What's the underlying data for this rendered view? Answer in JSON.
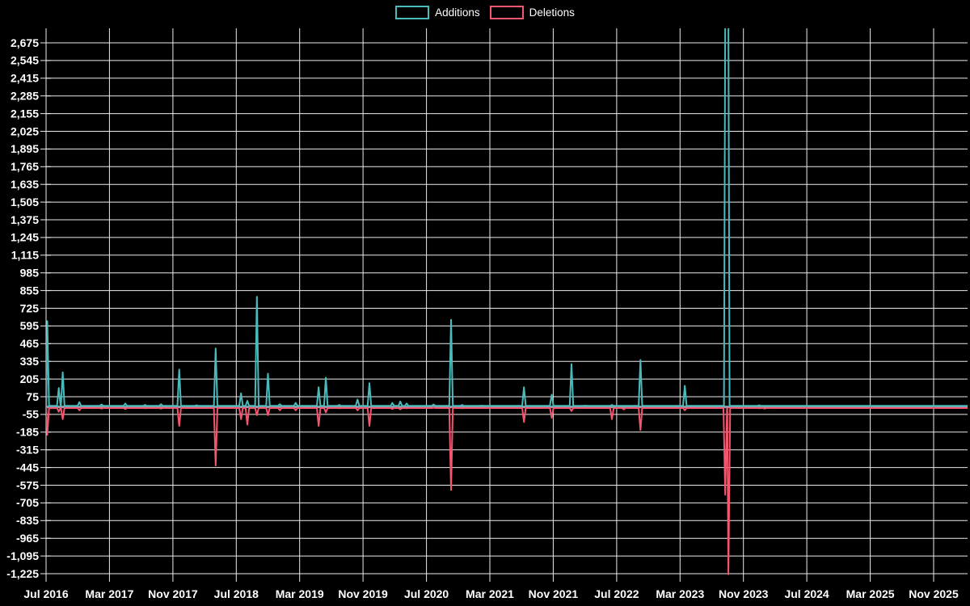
{
  "legend": {
    "additions_label": "Additions",
    "deletions_label": "Deletions"
  },
  "colors": {
    "additions": "#4abbbc",
    "deletions": "#f5566f",
    "zero_line": "#90a0ae",
    "grid": "#ececec",
    "text": "#ffffff",
    "background": "#000000"
  },
  "chart_data": {
    "type": "line",
    "title": "",
    "grid": true,
    "legend_position": "top-center",
    "x_axis": {
      "tick_labels": [
        "Jul 2016",
        "Mar 2017",
        "Nov 2017",
        "Jul 2018",
        "Mar 2019",
        "Nov 2019",
        "Jul 2020",
        "Mar 2021",
        "Nov 2021",
        "Jul 2022",
        "Mar 2023",
        "Nov 2023",
        "Jul 2024",
        "Mar 2025",
        "Nov 2025"
      ],
      "months_between_ticks": 8,
      "start": "Jul 2016",
      "end": "Nov 2025"
    },
    "y_axis": {
      "tick_step": 130,
      "ticks": [
        2675,
        2545,
        2415,
        2285,
        2155,
        2025,
        1895,
        1765,
        1635,
        1505,
        1375,
        1245,
        1115,
        985,
        855,
        725,
        595,
        465,
        335,
        205,
        75,
        -55,
        -185,
        -315,
        -445,
        -575,
        -705,
        -835,
        -965,
        -1095,
        -1225
      ],
      "zero_line": true
    },
    "series": [
      {
        "name": "Additions",
        "color_key": "additions",
        "baseline_value": 8,
        "points": [
          {
            "months_from_jul2016": 0.15,
            "date": "2016-07",
            "value": 630
          },
          {
            "months_from_jul2016": 1.6,
            "date": "2016-08",
            "value": 140
          },
          {
            "months_from_jul2016": 2.1,
            "date": "2016-09",
            "value": 255
          },
          {
            "months_from_jul2016": 4.2,
            "date": "2016-11",
            "value": 35
          },
          {
            "months_from_jul2016": 7.0,
            "date": "2017-02",
            "value": 18
          },
          {
            "months_from_jul2016": 10.0,
            "date": "2017-05",
            "value": 25
          },
          {
            "months_from_jul2016": 12.5,
            "date": "2017-07",
            "value": 15
          },
          {
            "months_from_jul2016": 14.5,
            "date": "2017-09",
            "value": 20
          },
          {
            "months_from_jul2016": 16.8,
            "date": "2017-12",
            "value": 275
          },
          {
            "months_from_jul2016": 19.0,
            "date": "2018-02",
            "value": 12
          },
          {
            "months_from_jul2016": 21.4,
            "date": "2018-04",
            "value": 430
          },
          {
            "months_from_jul2016": 24.6,
            "date": "2018-07",
            "value": 100
          },
          {
            "months_from_jul2016": 25.4,
            "date": "2018-08",
            "value": 45
          },
          {
            "months_from_jul2016": 26.6,
            "date": "2018-09",
            "value": 810
          },
          {
            "months_from_jul2016": 28.0,
            "date": "2018-11",
            "value": 245
          },
          {
            "months_from_jul2016": 29.5,
            "date": "2018-12",
            "value": 20
          },
          {
            "months_from_jul2016": 31.5,
            "date": "2019-02",
            "value": 30
          },
          {
            "months_from_jul2016": 34.4,
            "date": "2019-05",
            "value": 145
          },
          {
            "months_from_jul2016": 35.3,
            "date": "2019-06",
            "value": 215
          },
          {
            "months_from_jul2016": 37.0,
            "date": "2019-08",
            "value": 15
          },
          {
            "months_from_jul2016": 39.3,
            "date": "2019-10",
            "value": 55
          },
          {
            "months_from_jul2016": 40.8,
            "date": "2019-11",
            "value": 175
          },
          {
            "months_from_jul2016": 43.7,
            "date": "2020-02",
            "value": 30
          },
          {
            "months_from_jul2016": 44.7,
            "date": "2020-03",
            "value": 40
          },
          {
            "months_from_jul2016": 45.5,
            "date": "2020-04",
            "value": 25
          },
          {
            "months_from_jul2016": 48.9,
            "date": "2020-07",
            "value": 18
          },
          {
            "months_from_jul2016": 51.1,
            "date": "2020-10",
            "value": 640
          },
          {
            "months_from_jul2016": 52.5,
            "date": "2020-11",
            "value": 15
          },
          {
            "months_from_jul2016": 55.0,
            "date": "2021-02",
            "value": 10
          },
          {
            "months_from_jul2016": 60.3,
            "date": "2021-07",
            "value": 145
          },
          {
            "months_from_jul2016": 63.8,
            "date": "2021-10",
            "value": 90
          },
          {
            "months_from_jul2016": 66.3,
            "date": "2022-01",
            "value": 315
          },
          {
            "months_from_jul2016": 68.0,
            "date": "2022-03",
            "value": 10
          },
          {
            "months_from_jul2016": 71.4,
            "date": "2022-06",
            "value": 15
          },
          {
            "months_from_jul2016": 72.9,
            "date": "2022-07",
            "value": 8
          },
          {
            "months_from_jul2016": 75.0,
            "date": "2022-10",
            "value": 345
          },
          {
            "months_from_jul2016": 80.6,
            "date": "2023-03",
            "value": 155
          },
          {
            "months_from_jul2016": 85.9,
            "date": "2023-09",
            "value": 2880,
            "wide": true,
            "clipped_at_top": true
          },
          {
            "months_from_jul2016": 90.0,
            "date": "2024-01",
            "value": 12
          },
          {
            "months_from_jul2016": 90.7,
            "date": "2024-02",
            "value": 8
          }
        ]
      },
      {
        "name": "Deletions",
        "color_key": "deletions",
        "baseline_value": -8,
        "points": [
          {
            "months_from_jul2016": 0.15,
            "date": "2016-07",
            "value": -205
          },
          {
            "months_from_jul2016": 1.6,
            "date": "2016-08",
            "value": -35
          },
          {
            "months_from_jul2016": 2.1,
            "date": "2016-09",
            "value": -90
          },
          {
            "months_from_jul2016": 4.2,
            "date": "2016-11",
            "value": -25
          },
          {
            "months_from_jul2016": 7.0,
            "date": "2017-02",
            "value": -12
          },
          {
            "months_from_jul2016": 10.0,
            "date": "2017-05",
            "value": -15
          },
          {
            "months_from_jul2016": 12.5,
            "date": "2017-07",
            "value": -10
          },
          {
            "months_from_jul2016": 14.5,
            "date": "2017-09",
            "value": -12
          },
          {
            "months_from_jul2016": 16.8,
            "date": "2017-12",
            "value": -140
          },
          {
            "months_from_jul2016": 19.0,
            "date": "2018-02",
            "value": -8
          },
          {
            "months_from_jul2016": 21.4,
            "date": "2018-04",
            "value": -430
          },
          {
            "months_from_jul2016": 24.6,
            "date": "2018-07",
            "value": -90
          },
          {
            "months_from_jul2016": 25.4,
            "date": "2018-08",
            "value": -130
          },
          {
            "months_from_jul2016": 26.6,
            "date": "2018-09",
            "value": -60
          },
          {
            "months_from_jul2016": 28.0,
            "date": "2018-11",
            "value": -60
          },
          {
            "months_from_jul2016": 29.5,
            "date": "2018-12",
            "value": -25
          },
          {
            "months_from_jul2016": 31.5,
            "date": "2019-02",
            "value": -25
          },
          {
            "months_from_jul2016": 34.4,
            "date": "2019-05",
            "value": -140
          },
          {
            "months_from_jul2016": 35.3,
            "date": "2019-06",
            "value": -40
          },
          {
            "months_from_jul2016": 37.0,
            "date": "2019-08",
            "value": -10
          },
          {
            "months_from_jul2016": 39.3,
            "date": "2019-10",
            "value": -25
          },
          {
            "months_from_jul2016": 40.8,
            "date": "2019-11",
            "value": -140
          },
          {
            "months_from_jul2016": 43.7,
            "date": "2020-02",
            "value": -15
          },
          {
            "months_from_jul2016": 44.7,
            "date": "2020-03",
            "value": -18
          },
          {
            "months_from_jul2016": 45.5,
            "date": "2020-04",
            "value": -10
          },
          {
            "months_from_jul2016": 48.9,
            "date": "2020-07",
            "value": -5
          },
          {
            "months_from_jul2016": 51.1,
            "date": "2020-10",
            "value": -610
          },
          {
            "months_from_jul2016": 52.5,
            "date": "2020-11",
            "value": -10
          },
          {
            "months_from_jul2016": 55.0,
            "date": "2021-02",
            "value": -8
          },
          {
            "months_from_jul2016": 60.3,
            "date": "2021-07",
            "value": -110
          },
          {
            "months_from_jul2016": 63.8,
            "date": "2021-10",
            "value": -80
          },
          {
            "months_from_jul2016": 66.3,
            "date": "2022-01",
            "value": -30
          },
          {
            "months_from_jul2016": 68.0,
            "date": "2022-03",
            "value": -8
          },
          {
            "months_from_jul2016": 71.4,
            "date": "2022-06",
            "value": -90
          },
          {
            "months_from_jul2016": 72.9,
            "date": "2022-07",
            "value": -18
          },
          {
            "months_from_jul2016": 75.0,
            "date": "2022-10",
            "value": -170
          },
          {
            "months_from_jul2016": 80.6,
            "date": "2023-03",
            "value": -25
          },
          {
            "months_from_jul2016": 85.7,
            "date": "2023-09",
            "value": -645
          },
          {
            "months_from_jul2016": 86.1,
            "date": "2023-10",
            "value": -1230
          },
          {
            "months_from_jul2016": 90.0,
            "date": "2024-01",
            "value": -10
          },
          {
            "months_from_jul2016": 90.7,
            "date": "2024-02",
            "value": -12
          }
        ]
      }
    ]
  }
}
